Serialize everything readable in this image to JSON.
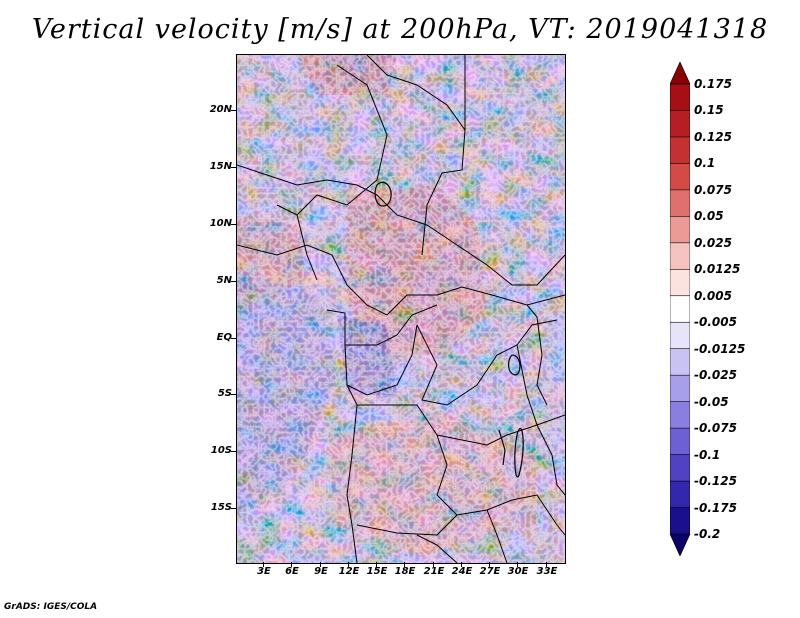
{
  "title": "Vertical velocity [m/s] at 200hPa, VT: 2019041318",
  "credit": "GrADS: IGES/COLA",
  "lat_labels": [
    "20N",
    "15N",
    "10N",
    "5N",
    "EQ",
    "5S",
    "10S",
    "15S"
  ],
  "lon_labels": [
    "3E",
    "6E",
    "9E",
    "12E",
    "15E",
    "18E",
    "21E",
    "24E",
    "27E",
    "30E",
    "33E"
  ],
  "colorbar": {
    "levels": [
      "0.175",
      "0.15",
      "0.125",
      "0.1",
      "0.075",
      "0.05",
      "0.025",
      "0.0125",
      "0.005",
      "-0.005",
      "-0.0125",
      "-0.025",
      "-0.05",
      "-0.075",
      "-0.1",
      "-0.125",
      "-0.175",
      "-0.2"
    ],
    "colors": [
      "#8b0000",
      "#a50f15",
      "#b51f24",
      "#c53030",
      "#d44a47",
      "#e0706d",
      "#eb9a95",
      "#f5c4bf",
      "#fbe3e0",
      "#ffffff",
      "#e6e3fb",
      "#c9c3f3",
      "#a79fea",
      "#8a7fe0",
      "#6c60d4",
      "#4f43c4",
      "#3327b0",
      "#1a0f8c",
      "#0a0066"
    ]
  }
}
